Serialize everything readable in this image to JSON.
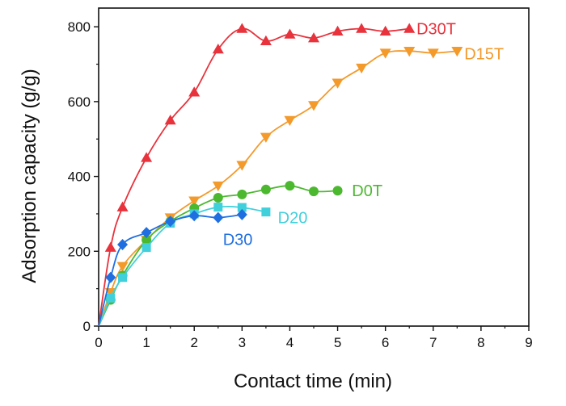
{
  "chart_data": {
    "type": "line",
    "xlabel": "Contact time (min)",
    "ylabel": "Adsorption capacity (g/g)",
    "xlim": [
      0,
      9
    ],
    "ylim": [
      0,
      850
    ],
    "x_ticks": [
      "0",
      "1",
      "2",
      "3",
      "4",
      "5",
      "6",
      "7",
      "8",
      "9"
    ],
    "y_ticks": [
      "0",
      "200",
      "400",
      "600",
      "800"
    ],
    "grid": false,
    "series": [
      {
        "name": "D30T",
        "color": "#e8323c",
        "marker": "triangle-up",
        "x": [
          0,
          0.25,
          0.5,
          1,
          1.5,
          2,
          2.5,
          3,
          3.5,
          4,
          4.5,
          5,
          5.5,
          6,
          6.5
        ],
        "y": [
          0,
          210,
          318,
          450,
          550,
          625,
          740,
          795,
          762,
          780,
          770,
          788,
          795,
          788,
          795
        ]
      },
      {
        "name": "D15T",
        "color": "#f39a2b",
        "marker": "triangle-down",
        "x": [
          0,
          0.25,
          0.5,
          1,
          1.5,
          2,
          2.5,
          3,
          3.5,
          4,
          4.5,
          5,
          5.5,
          6,
          6.5,
          7,
          7.5
        ],
        "y": [
          0,
          90,
          160,
          230,
          290,
          335,
          375,
          430,
          505,
          550,
          590,
          650,
          690,
          730,
          735,
          730,
          735
        ]
      },
      {
        "name": "D0T",
        "color": "#4cb830",
        "marker": "circle",
        "x": [
          0,
          0.25,
          0.5,
          1,
          1.5,
          2,
          2.5,
          3,
          3.5,
          4,
          4.5,
          5
        ],
        "y": [
          0,
          70,
          135,
          230,
          280,
          315,
          343,
          352,
          365,
          375,
          360,
          362
        ]
      },
      {
        "name": "D20",
        "color": "#3fd0dc",
        "marker": "square",
        "x": [
          0,
          0.25,
          0.5,
          1,
          1.5,
          2,
          2.5,
          3,
          3.5
        ],
        "y": [
          0,
          75,
          130,
          210,
          275,
          300,
          318,
          317,
          305
        ]
      },
      {
        "name": "D30",
        "color": "#1f6fe0",
        "marker": "diamond",
        "x": [
          0,
          0.25,
          0.5,
          1,
          1.5,
          2,
          2.5,
          3
        ],
        "y": [
          0,
          130,
          218,
          250,
          280,
          295,
          290,
          298
        ]
      }
    ],
    "labels": [
      {
        "text": "D30T",
        "color": "#e8323c",
        "x": 6.65,
        "y": 795
      },
      {
        "text": "D15T",
        "color": "#f39a2b",
        "x": 7.65,
        "y": 728
      },
      {
        "text": "D0T",
        "color": "#4cb830",
        "x": 5.3,
        "y": 362
      },
      {
        "text": "D20",
        "color": "#3fd0dc",
        "x": 3.75,
        "y": 290
      },
      {
        "text": "D30",
        "color": "#1f6fe0",
        "x": 2.6,
        "y": 232
      }
    ]
  }
}
